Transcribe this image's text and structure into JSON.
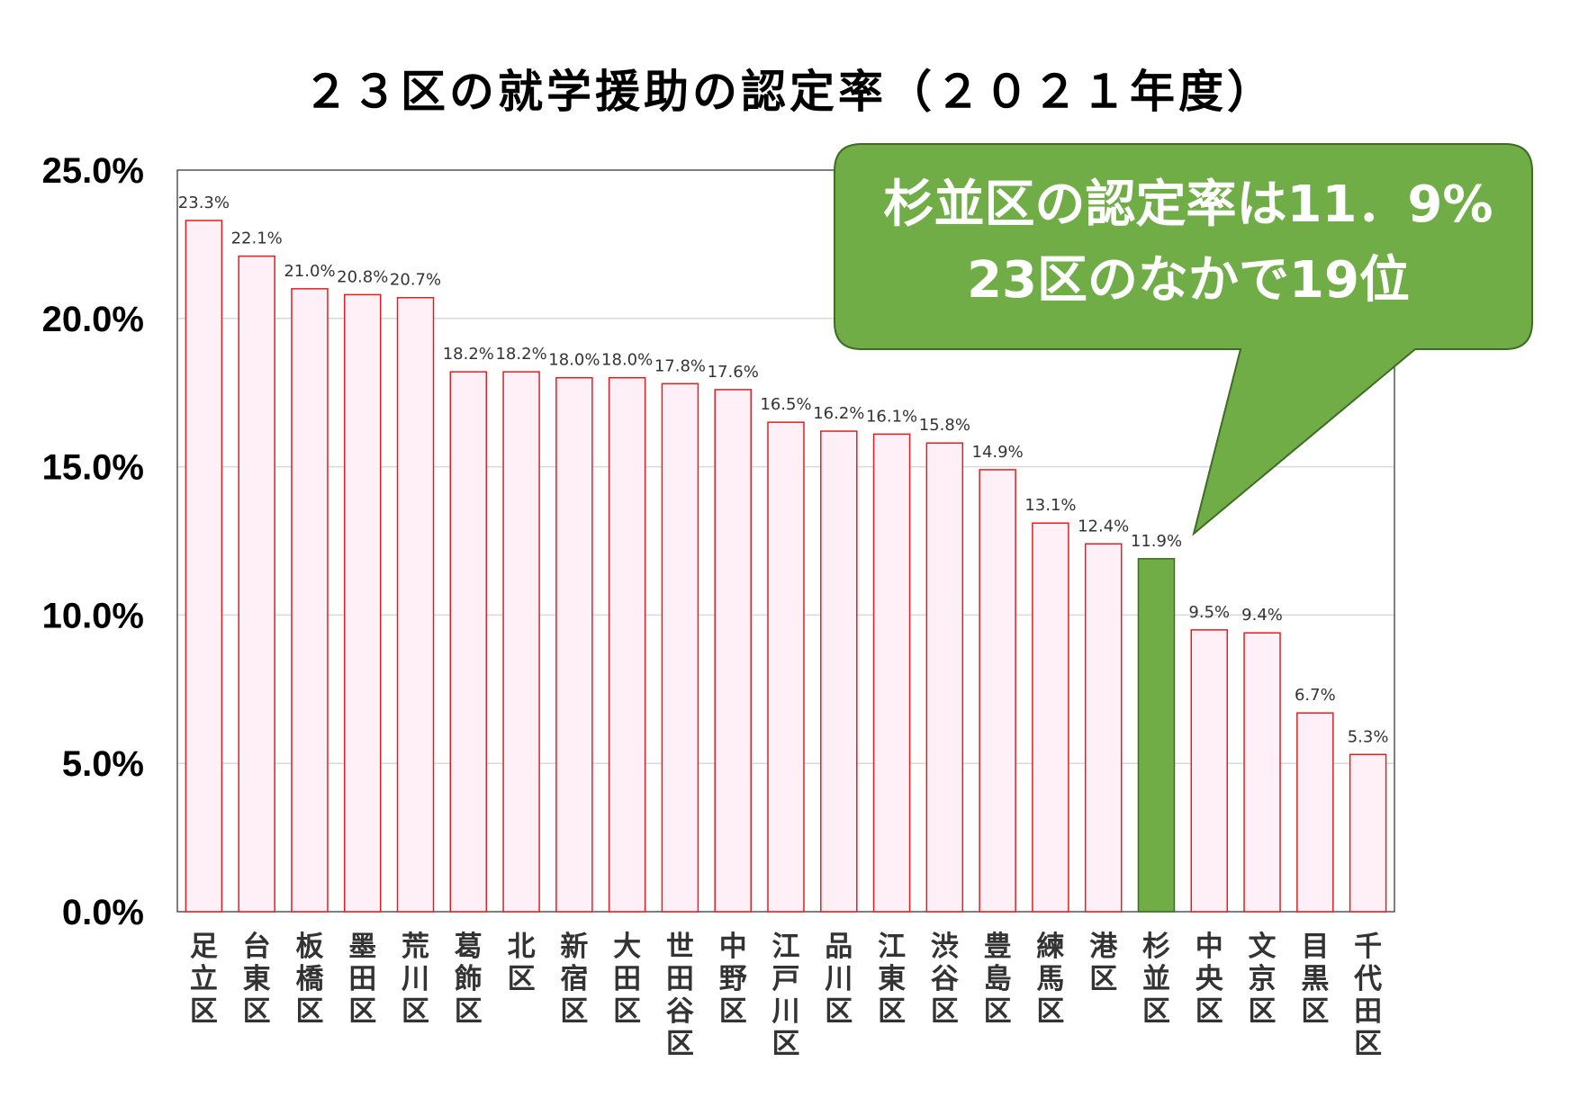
{
  "chart_data": {
    "type": "bar",
    "title": "２３区の就学援助の認定率（２０２１年度）",
    "ylim": [
      0,
      0.25
    ],
    "yticks": [
      "0.0%",
      "5.0%",
      "10.0%",
      "15.0%",
      "20.0%",
      "25.0%"
    ],
    "grid": true,
    "categories": [
      "足立区",
      "台東区",
      "板橋区",
      "墨田区",
      "荒川区",
      "葛飾区",
      "北区",
      "新宿区",
      "大田区",
      "世田谷区",
      "中野区",
      "江戸川区",
      "品川区",
      "江東区",
      "渋谷区",
      "豊島区",
      "練馬区",
      "港区",
      "杉並区",
      "中央区",
      "文京区",
      "目黒区",
      "千代田区"
    ],
    "values": [
      0.233,
      0.221,
      0.21,
      0.208,
      0.207,
      0.182,
      0.182,
      0.18,
      0.18,
      0.178,
      0.176,
      0.165,
      0.162,
      0.161,
      0.158,
      0.149,
      0.131,
      0.124,
      0.119,
      0.095,
      0.094,
      0.067,
      0.053
    ],
    "data_labels": [
      "23.3%",
      "22.1%",
      "21.0%",
      "20.8%",
      "20.7%",
      "18.2%",
      "18.2%",
      "18.0%",
      "18.0%",
      "17.8%",
      "17.6%",
      "16.5%",
      "16.2%",
      "16.1%",
      "15.8%",
      "14.9%",
      "13.1%",
      "12.4%",
      "11.9%",
      "9.5%",
      "9.4%",
      "6.7%",
      "5.3%"
    ],
    "highlight_category": "杉並区",
    "annotation": [
      "杉並区の認定率は11．9%",
      "23区のなかで19位"
    ]
  },
  "colors": {
    "bar_fill": "#fff0f8",
    "bar_stroke": "#e02020",
    "highlight_fill": "#70ad47",
    "highlight_stroke": "#3f6b25",
    "callout_fill": "#70ad47",
    "callout_stroke": "#3f6b25",
    "grid": "#d9d9d9"
  }
}
